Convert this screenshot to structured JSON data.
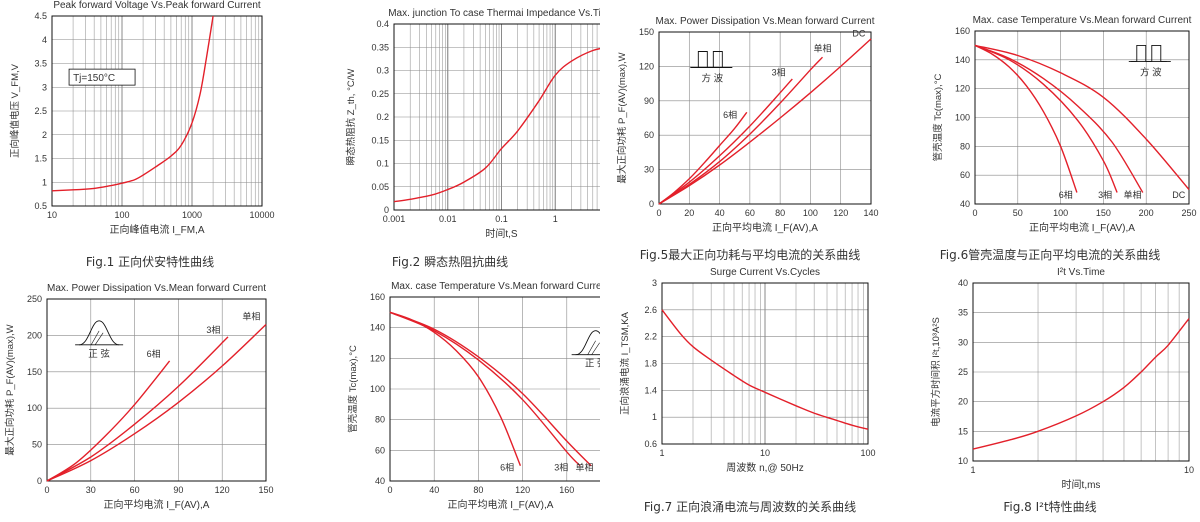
{
  "charts": [
    {
      "id": "fig1",
      "type": "line",
      "title": "Peak forward Voltage Vs.Peak forward Current",
      "caption": "Fig.1 正向伏安特性曲线",
      "xlabel": "正向峰值电流 I_FM,A",
      "ylabel": "正向峰值电压 V_FM,V",
      "xscale": "log",
      "xlim": [
        10,
        10000
      ],
      "ylim": [
        0.5,
        4.5
      ],
      "xticks": [
        10,
        100,
        1000,
        10000
      ],
      "xtick_labels": [
        "10",
        "100",
        "1000",
        "10000"
      ],
      "yticks": [
        0.5,
        1,
        1.5,
        2,
        2.5,
        3,
        3.5,
        4,
        4.5
      ],
      "ytick_labels": [
        "0.5",
        "1",
        "1.5",
        "2",
        "2.5",
        "3",
        "3.5",
        "4",
        "4.5"
      ],
      "annotations": [
        {
          "text": "Tj=150°C",
          "x": 20,
          "y": 3.15,
          "boxed": true
        }
      ],
      "series": [
        {
          "name": "",
          "x": [
            10,
            20,
            40,
            70,
            100,
            150,
            200,
            300,
            500,
            700,
            1000,
            1300,
            1600,
            2000
          ],
          "y": [
            0.82,
            0.84,
            0.87,
            0.93,
            0.98,
            1.05,
            1.15,
            1.32,
            1.55,
            1.78,
            2.25,
            2.85,
            3.6,
            4.5
          ]
        }
      ]
    },
    {
      "id": "fig2",
      "type": "line",
      "title": "Max. junction To case Thermai Impedance Vs.Time",
      "caption": "Fig.2 瞬态热阻抗曲线",
      "xlabel": "时间t,S",
      "ylabel": "瞬态热阻抗 Z_th, °C/W",
      "xscale": "log",
      "xlim": [
        0.001,
        10
      ],
      "ylim": [
        0,
        0.4
      ],
      "xticks": [
        0.001,
        0.01,
        0.1,
        1,
        10
      ],
      "xtick_labels": [
        "0.001",
        "0.01",
        "0.1",
        "1",
        "10"
      ],
      "yticks": [
        0,
        0.05,
        0.1,
        0.15,
        0.2,
        0.25,
        0.3,
        0.35,
        0.4
      ],
      "ytick_labels": [
        "0",
        "0.05",
        "0.1",
        "0.15",
        "0.2",
        "0.25",
        "0.3",
        "0.35",
        "0.4"
      ],
      "annotations": [],
      "series": [
        {
          "name": "",
          "x": [
            0.001,
            0.002,
            0.005,
            0.01,
            0.02,
            0.05,
            0.1,
            0.2,
            0.5,
            1,
            2,
            5,
            10
          ],
          "y": [
            0.018,
            0.023,
            0.032,
            0.044,
            0.06,
            0.09,
            0.132,
            0.17,
            0.235,
            0.29,
            0.32,
            0.343,
            0.35
          ]
        }
      ]
    },
    {
      "id": "fig5",
      "type": "line",
      "title": "Max. Power Dissipation Vs.Mean forward Current",
      "caption": "Fig.5最大正向功耗与平均电流的关系曲线",
      "xlabel": "正向平均电流 I_F(AV),A",
      "ylabel": "最大正向功耗 P_F(AV)(max),W",
      "xscale": "linear",
      "xlim": [
        0,
        140
      ],
      "ylim": [
        0,
        150
      ],
      "xticks": [
        0,
        20,
        40,
        60,
        80,
        100,
        120,
        140
      ],
      "xtick_labels": [
        "0",
        "20",
        "40",
        "60",
        "80",
        "100",
        "120",
        "140"
      ],
      "yticks": [
        0,
        30,
        60,
        90,
        120,
        150
      ],
      "ytick_labels": [
        "0",
        "30",
        "60",
        "90",
        "120",
        "150"
      ],
      "waveform": {
        "kind": "square",
        "label": "方 波",
        "x": 22,
        "y": 133
      },
      "annotations": [],
      "series": [
        {
          "name": "6相",
          "x": [
            0,
            10,
            20,
            30,
            40,
            50,
            58
          ],
          "y": [
            0,
            10,
            22,
            36,
            51,
            66,
            80
          ],
          "label_at": [
            47,
            75
          ]
        },
        {
          "name": "3相",
          "x": [
            0,
            20,
            40,
            60,
            80,
            88
          ],
          "y": [
            0,
            19,
            42,
            68,
            97,
            109
          ],
          "label_at": [
            79,
            112
          ]
        },
        {
          "name": "单相",
          "x": [
            0,
            20,
            40,
            60,
            80,
            100,
            108
          ],
          "y": [
            0,
            17,
            37,
            61,
            88,
            117,
            128
          ],
          "label_at": [
            108,
            133
          ]
        },
        {
          "name": "DC",
          "x": [
            0,
            20,
            40,
            60,
            80,
            100,
            120,
            140
          ],
          "y": [
            0,
            16,
            34,
            54,
            75,
            97,
            120,
            144
          ],
          "label_at": [
            132,
            146
          ]
        }
      ]
    },
    {
      "id": "fig6",
      "type": "line",
      "title": "Max. case Temperature Vs.Mean forward Current",
      "caption": "Fig.6管壳温度与正向平均电流的关系曲线",
      "xlabel": "正向平均电流 I_F(AV),A",
      "ylabel": "管壳温度 Tc(max),°C",
      "xscale": "linear",
      "xlim": [
        0,
        250
      ],
      "ylim": [
        40,
        160
      ],
      "xticks": [
        0,
        50,
        100,
        150,
        200,
        250
      ],
      "xtick_labels": [
        "0",
        "50",
        "100",
        "150",
        "200",
        "250"
      ],
      "yticks": [
        40,
        60,
        80,
        100,
        120,
        140,
        160
      ],
      "ytick_labels": [
        "40",
        "60",
        "80",
        "100",
        "120",
        "140",
        "160"
      ],
      "waveform": {
        "kind": "square",
        "label": "方 波",
        "x": 182,
        "y": 150
      },
      "annotations": [],
      "series": [
        {
          "name": "6相",
          "x": [
            0,
            20,
            40,
            60,
            80,
            100,
            119
          ],
          "y": [
            150,
            144,
            135,
            122,
            104,
            80,
            48
          ],
          "label_at": [
            106,
            44
          ]
        },
        {
          "name": "3相",
          "x": [
            0,
            40,
            80,
            120,
            150,
            166
          ],
          "y": [
            150,
            140,
            123,
            98,
            70,
            48
          ],
          "label_at": [
            152,
            44
          ]
        },
        {
          "name": "单相",
          "x": [
            0,
            40,
            80,
            120,
            160,
            196
          ],
          "y": [
            150,
            141,
            127,
            108,
            83,
            48
          ],
          "label_at": [
            184,
            44
          ]
        },
        {
          "name": "DC",
          "x": [
            0,
            50,
            100,
            150,
            200,
            250
          ],
          "y": [
            150,
            143,
            131,
            114,
            85,
            50
          ],
          "label_at": [
            238,
            44
          ]
        }
      ]
    },
    {
      "id": "fig3",
      "type": "line",
      "title": "Max. Power Dissipation Vs.Mean forward Current",
      "caption": "",
      "xlabel": "正向平均电流 I_F(AV),A",
      "ylabel": "最大正向功耗 P_F(AV)(max),W",
      "xscale": "linear",
      "xlim": [
        0,
        150
      ],
      "ylim": [
        0,
        250
      ],
      "xticks": [
        0,
        30,
        60,
        90,
        120,
        150
      ],
      "xtick_labels": [
        "0",
        "30",
        "60",
        "90",
        "120",
        "150"
      ],
      "yticks": [
        0,
        50,
        100,
        150,
        200,
        250
      ],
      "ytick_labels": [
        "0",
        "50",
        "100",
        "150",
        "200",
        "250"
      ],
      "waveform": {
        "kind": "sine",
        "label": "正 弦",
        "x": 22,
        "y": 220
      },
      "annotations": [],
      "series": [
        {
          "name": "6相",
          "x": [
            0,
            20,
            40,
            60,
            84
          ],
          "y": [
            0,
            25,
            62,
            105,
            165
          ],
          "label_at": [
            73,
            170
          ]
        },
        {
          "name": "3相",
          "x": [
            0,
            30,
            60,
            90,
            124
          ],
          "y": [
            0,
            33,
            78,
            130,
            198
          ],
          "label_at": [
            114,
            203
          ]
        },
        {
          "name": "单相",
          "x": [
            0,
            30,
            60,
            90,
            120,
            150
          ],
          "y": [
            0,
            28,
            65,
            108,
            158,
            215
          ],
          "label_at": [
            140,
            222
          ]
        }
      ]
    },
    {
      "id": "fig4",
      "type": "line",
      "title": "Max. case Temperature Vs.Mean forward Current",
      "caption": "",
      "xlabel": "正向平均电流 I_F(AV),A",
      "ylabel": "管壳温度 Tc(max),°C",
      "xscale": "linear",
      "xlim": [
        0,
        200
      ],
      "ylim": [
        40,
        160
      ],
      "xticks": [
        0,
        40,
        80,
        120,
        160,
        200
      ],
      "xtick_labels": [
        "0",
        "40",
        "80",
        "120",
        "160",
        "200"
      ],
      "yticks": [
        40,
        60,
        80,
        100,
        120,
        140,
        160
      ],
      "ytick_labels": [
        "40",
        "60",
        "80",
        "100",
        "120",
        "140",
        "160"
      ],
      "waveform": {
        "kind": "sine",
        "label": "正 弦",
        "x": 168,
        "y": 138
      },
      "annotations": [],
      "series": [
        {
          "name": "6相",
          "x": [
            0,
            20,
            40,
            60,
            80,
            100,
            118
          ],
          "y": [
            150,
            145,
            137,
            125,
            108,
            82,
            50
          ],
          "label_at": [
            106,
            47
          ]
        },
        {
          "name": "3相",
          "x": [
            0,
            40,
            80,
            120,
            160,
            172
          ],
          "y": [
            150,
            138,
            119,
            93,
            59,
            50
          ],
          "label_at": [
            155,
            47
          ]
        },
        {
          "name": "单相",
          "x": [
            0,
            40,
            80,
            120,
            160,
            182
          ],
          "y": [
            150,
            139,
            121,
            97,
            66,
            50
          ],
          "label_at": [
            176,
            47
          ]
        }
      ]
    },
    {
      "id": "fig7",
      "type": "line",
      "title": "Surge Current Vs.Cycles",
      "caption": "Fig.7 正向浪涌电流与周波数的关系曲线",
      "xlabel": "周波数 n,@ 50Hz",
      "ylabel": "正向浪涌电流 I_TSM,KA",
      "xscale": "log",
      "xlim": [
        1,
        100
      ],
      "ylim": [
        0.6,
        3
      ],
      "xticks": [
        1,
        10,
        100
      ],
      "xtick_labels": [
        "1",
        "10",
        "100"
      ],
      "yticks": [
        0.6,
        1,
        1.4,
        1.8,
        2.2,
        2.6,
        3
      ],
      "ytick_labels": [
        "0.6",
        "1",
        "1.4",
        "1.8",
        "2.2",
        "2.6",
        "3"
      ],
      "annotations": [],
      "series": [
        {
          "name": "",
          "x": [
            1,
            1.5,
            2,
            3,
            5,
            7,
            10,
            20,
            30,
            50,
            70,
            100
          ],
          "y": [
            2.6,
            2.25,
            2.05,
            1.85,
            1.62,
            1.48,
            1.37,
            1.17,
            1.06,
            0.95,
            0.88,
            0.82
          ]
        }
      ]
    },
    {
      "id": "fig8",
      "type": "line",
      "title": "I²t Vs.Time",
      "caption": "Fig.8 I²t特性曲线",
      "xlabel": "时间t,ms",
      "ylabel": "电流平方时间积 I²t,10³A²S",
      "xscale": "log",
      "xlim": [
        1,
        10
      ],
      "ylim": [
        10,
        40
      ],
      "xticks": [
        1,
        10
      ],
      "xtick_labels": [
        "1",
        "10"
      ],
      "yticks": [
        10,
        15,
        20,
        25,
        30,
        35,
        40
      ],
      "ytick_labels": [
        "10",
        "15",
        "20",
        "25",
        "30",
        "35",
        "40"
      ],
      "annotations": [],
      "series": [
        {
          "name": "",
          "x": [
            1,
            1.5,
            2,
            3,
            4,
            5,
            6,
            7,
            8,
            10
          ],
          "y": [
            12,
            13.6,
            15,
            17.6,
            20,
            22.4,
            25,
            27.5,
            29.5,
            34
          ]
        }
      ]
    }
  ],
  "colors": {
    "curve": "#e3202a",
    "grid": "#8a8a8a",
    "axis": "#111111",
    "text": "#333333",
    "caption": "#333333"
  }
}
